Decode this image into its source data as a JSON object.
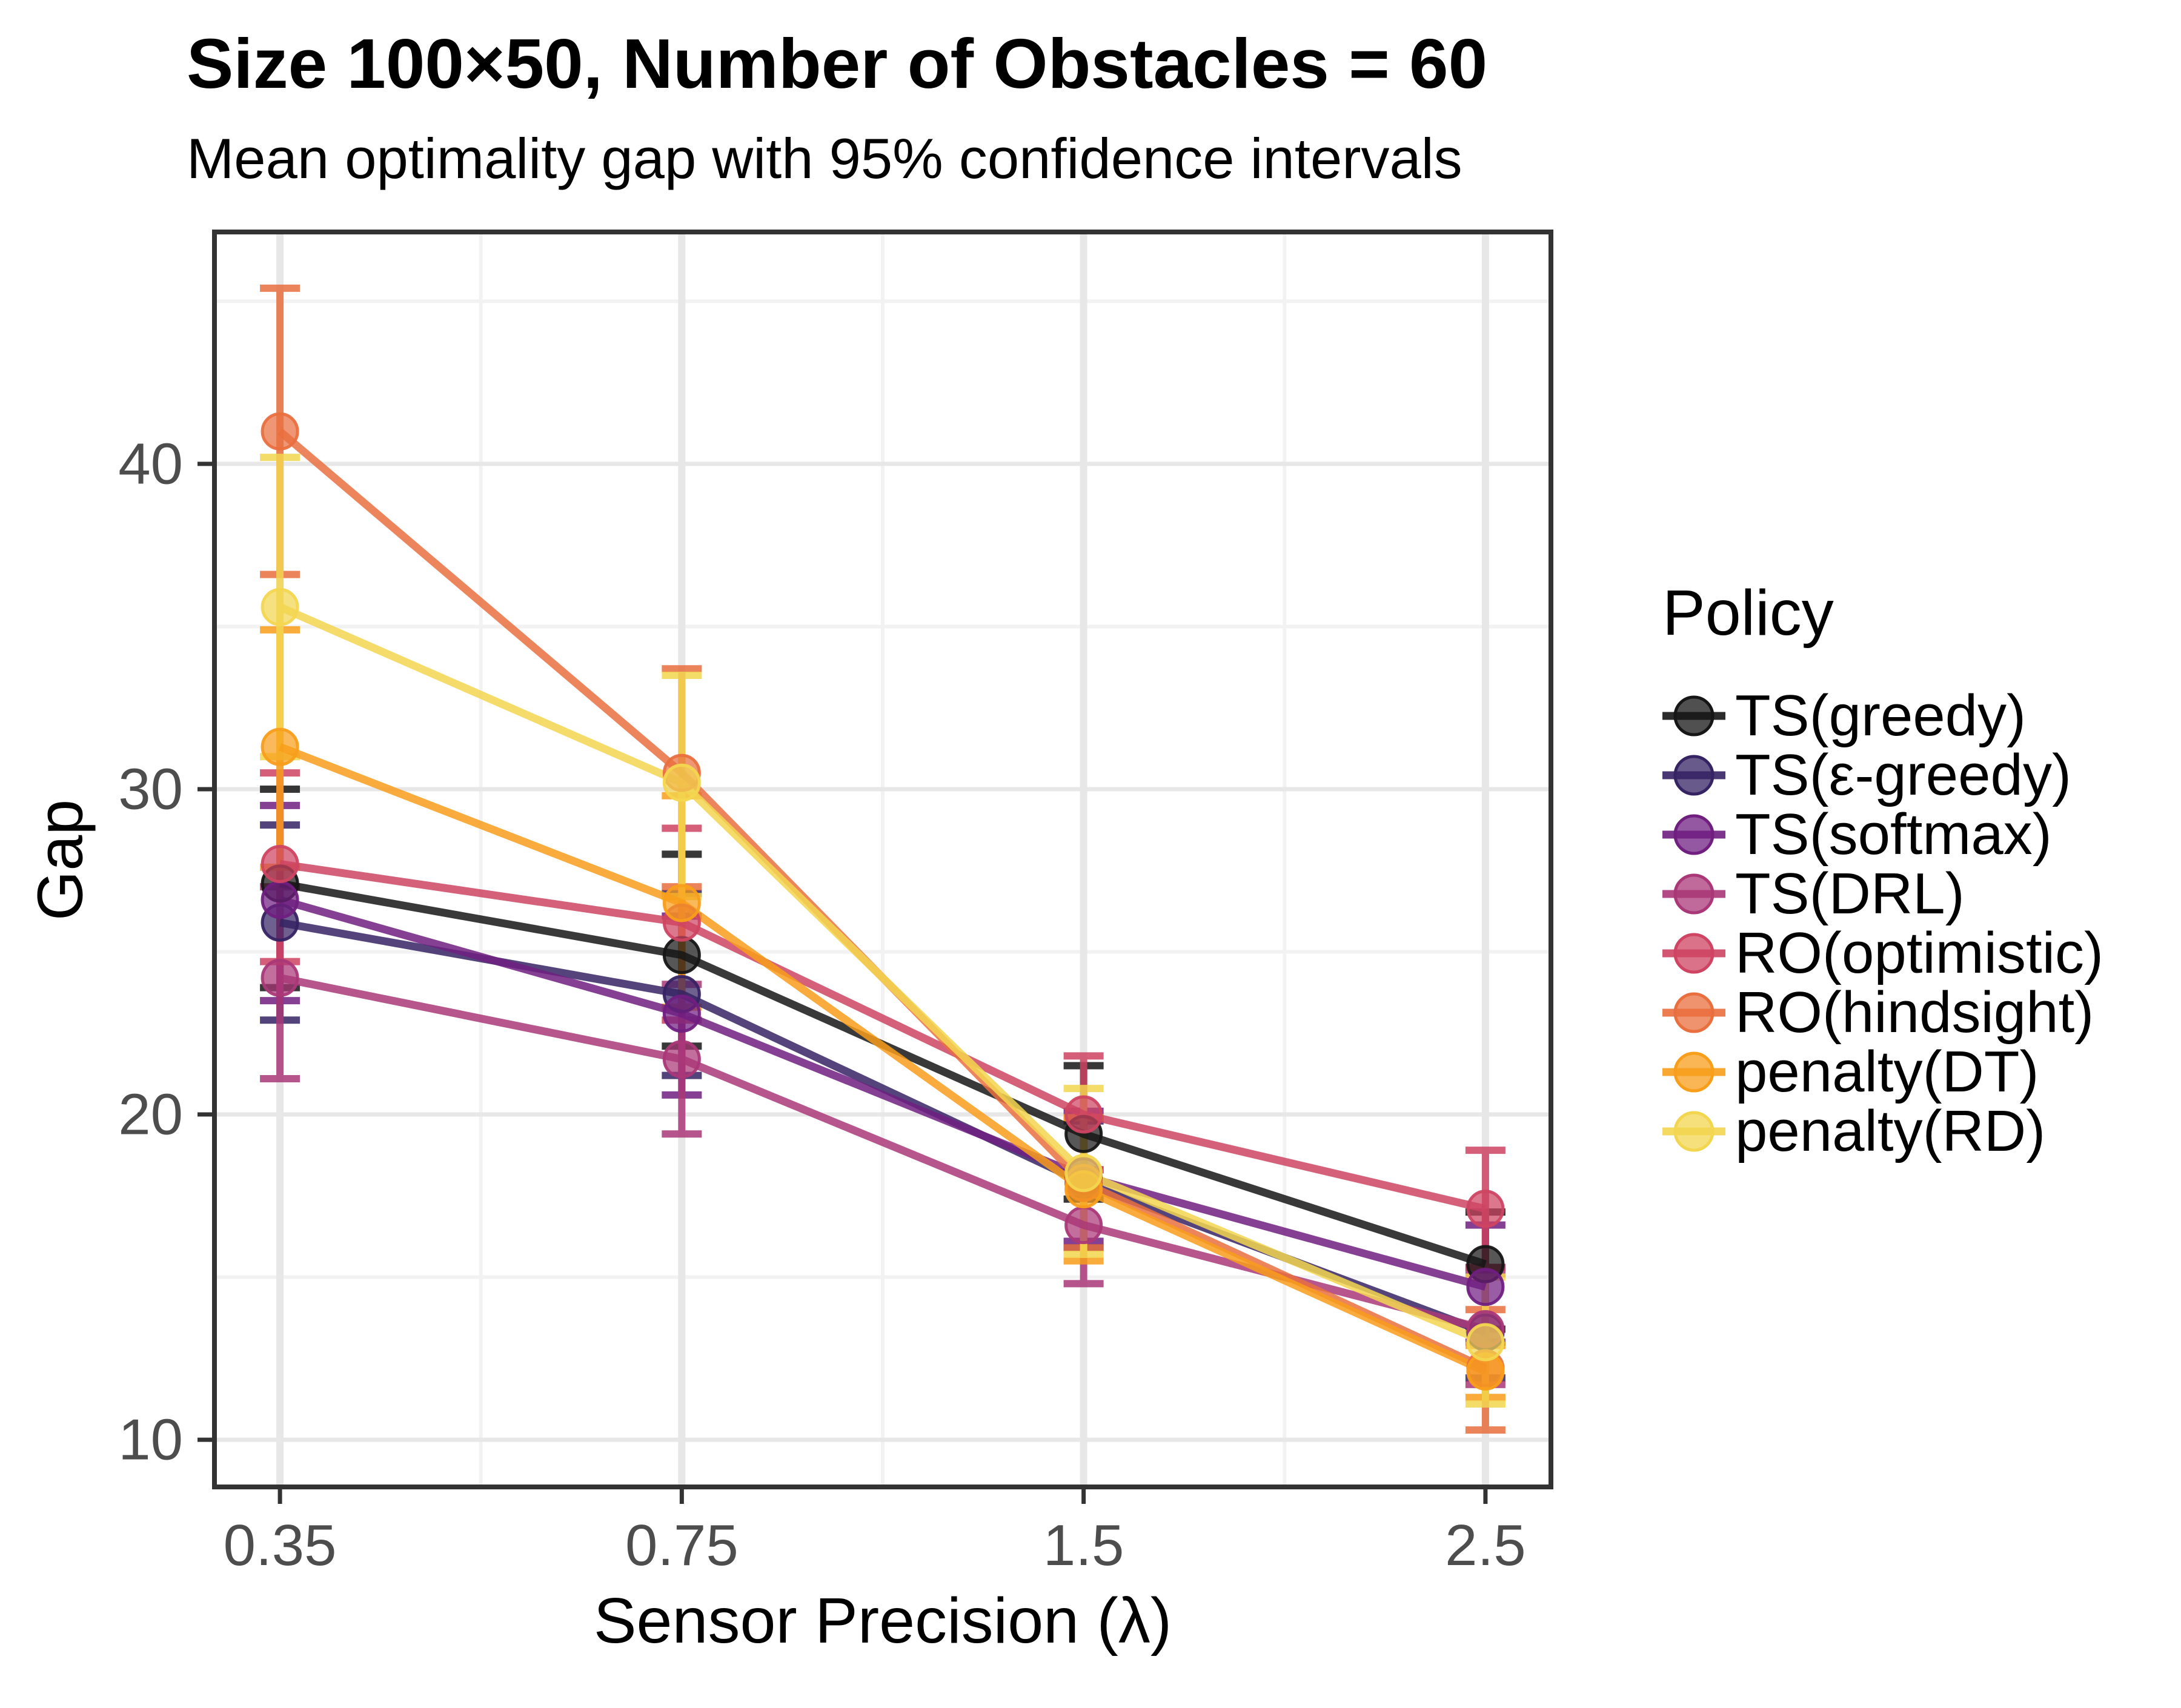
{
  "chart": {
    "title": "Size 100×50, Number of Obstacles = 60",
    "subtitle": "Mean optimality gap with 95% confidence intervals",
    "xlabel": "Sensor Precision (λ)",
    "ylabel": "Gap",
    "legend_title": "Policy"
  },
  "chart_data": {
    "type": "line",
    "title": "Size 100×50, Number of Obstacles = 60",
    "subtitle": "Mean optimality gap with 95% confidence intervals",
    "xlabel": "Sensor Precision (λ)",
    "ylabel": "Gap",
    "x_categories": [
      "0.35",
      "0.75",
      "1.5",
      "2.5"
    ],
    "x_spacing": "equal",
    "ylim": [
      8.55,
      47.13
    ],
    "yticks_major": [
      10,
      20,
      30,
      40
    ],
    "yticks_minor": [
      15,
      25,
      35,
      45
    ],
    "grid": "major+minor",
    "error_bars": "95% confidence interval",
    "legend_position": "right",
    "tick_label_color": "#4d4d4d",
    "panel_border_color": "#333333",
    "grid_major_color": "#e7e7e7",
    "grid_minor_color": "#f2f2f2",
    "series": [
      {
        "name": "TS(greedy)",
        "color": "#161616",
        "means": [
          27.1,
          24.9,
          19.4,
          15.4
        ],
        "ci_low": [
          23.9,
          22.1,
          17.4,
          13.4
        ],
        "ci_high": [
          30.0,
          28.0,
          21.5,
          17.0
        ]
      },
      {
        "name": "TS(ε-greedy)",
        "color": "#362364",
        "means": [
          25.9,
          23.7,
          17.9,
          13.3
        ],
        "ci_low": [
          22.9,
          21.2,
          15.9,
          11.9
        ],
        "ci_high": [
          28.9,
          26.8,
          19.8,
          15.3
        ]
      },
      {
        "name": "TS(softmax)",
        "color": "#701f81",
        "means": [
          26.6,
          23.1,
          18.1,
          14.7
        ],
        "ci_low": [
          23.5,
          20.6,
          16.1,
          13.0
        ],
        "ci_high": [
          29.5,
          26.1,
          20.1,
          16.6
        ]
      },
      {
        "name": "TS(DRL)",
        "color": "#aa3878",
        "means": [
          24.2,
          21.7,
          16.6,
          13.4
        ],
        "ci_low": [
          21.1,
          19.4,
          14.8,
          11.7
        ],
        "ci_high": [
          27.0,
          24.0,
          18.3,
          15.1
        ]
      },
      {
        "name": "RO(optimistic)",
        "color": "#ce4462",
        "means": [
          27.7,
          25.9,
          20.0,
          17.1
        ],
        "ci_low": [
          24.7,
          22.9,
          18.3,
          15.3
        ],
        "ci_high": [
          30.5,
          28.8,
          21.8,
          18.9
        ]
      },
      {
        "name": "RO(hindsight)",
        "color": "#e96f3f",
        "means": [
          41.0,
          30.5,
          17.9,
          12.2
        ],
        "ci_low": [
          36.6,
          27.0,
          15.9,
          10.3
        ],
        "ci_high": [
          45.4,
          33.7,
          19.9,
          14.0
        ]
      },
      {
        "name": "penalty(DT)",
        "color": "#f89e1b",
        "means": [
          31.3,
          26.5,
          17.7,
          12.1
        ],
        "ci_low": [
          27.6,
          23.3,
          15.5,
          11.3
        ],
        "ci_high": [
          34.9,
          29.8,
          19.9,
          12.9
        ]
      },
      {
        "name": "penalty(RD)",
        "color": "#f3d650",
        "means": [
          35.6,
          30.2,
          18.2,
          13.0
        ],
        "ci_low": [
          31.0,
          26.7,
          15.7,
          11.1
        ],
        "ci_high": [
          40.2,
          33.5,
          20.8,
          15.0
        ]
      }
    ]
  }
}
